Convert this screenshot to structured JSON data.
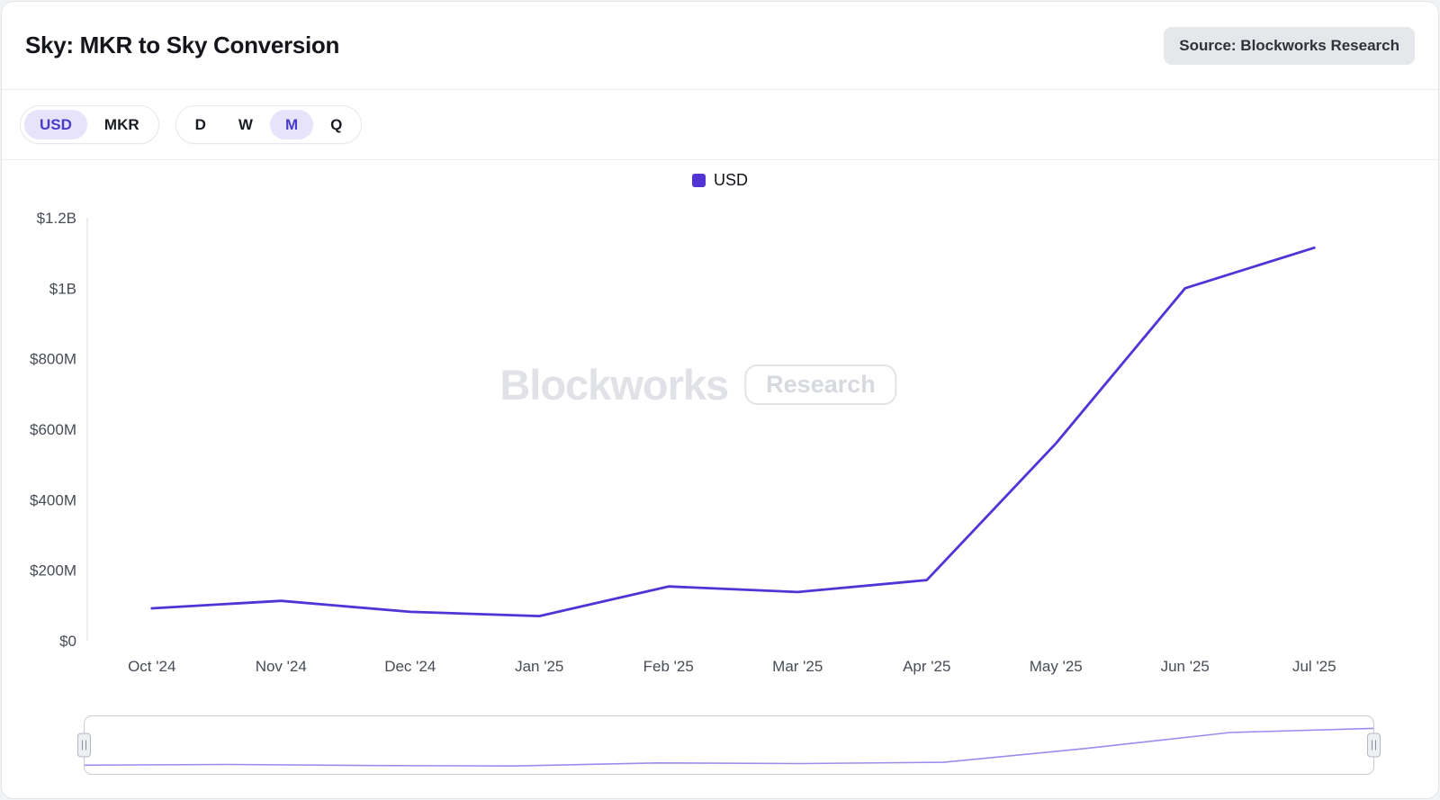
{
  "header": {
    "title": "Sky: MKR to Sky Conversion",
    "source_label": "Source: Blockworks Research"
  },
  "toolbar": {
    "currency_toggle": {
      "options": [
        "USD",
        "MKR"
      ],
      "selected": "USD"
    },
    "interval_toggle": {
      "options": [
        "D",
        "W",
        "M",
        "Q"
      ],
      "selected": "M"
    }
  },
  "legend": {
    "items": [
      {
        "label": "USD",
        "color": "#5233d6"
      }
    ]
  },
  "watermark": {
    "brand": "Blockworks",
    "badge": "Research"
  },
  "chart_data": {
    "type": "line",
    "title": "Sky: MKR to Sky Conversion",
    "categories": [
      "Oct '24",
      "Nov '24",
      "Dec '24",
      "Jan '25",
      "Feb '25",
      "Mar '25",
      "Apr '25",
      "May '25",
      "Jun '25",
      "Jul '25"
    ],
    "series": [
      {
        "name": "USD",
        "color": "#5233d6",
        "values": [
          92,
          113,
          82,
          70,
          154,
          138,
          172,
          560,
          1000,
          1115
        ]
      }
    ],
    "unit": "USD millions",
    "xlabel": "",
    "ylabel": "",
    "ylim": [
      0,
      1200
    ],
    "yticks": [
      {
        "value": 0,
        "label": "$0"
      },
      {
        "value": 200,
        "label": "$200M"
      },
      {
        "value": 400,
        "label": "$400M"
      },
      {
        "value": 600,
        "label": "$600M"
      },
      {
        "value": 800,
        "label": "$800M"
      },
      {
        "value": 1000,
        "label": "$1B"
      },
      {
        "value": 1200,
        "label": "$1.2B"
      }
    ],
    "grid": false,
    "legend_position": "top-center",
    "navigator": {
      "present": true,
      "line_color": "#9b8df0"
    }
  }
}
